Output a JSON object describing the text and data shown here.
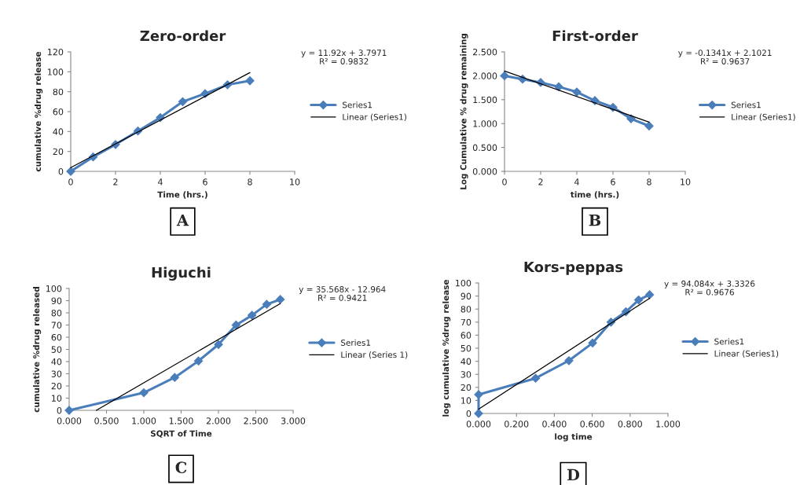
{
  "chart_data": [
    {
      "type": "line",
      "title": "Zero-order",
      "xlabel": "Time (hrs.)",
      "ylabel": "cumulative %drug release",
      "xlim": [
        0,
        10
      ],
      "xticks": [
        0,
        2,
        4,
        6,
        8,
        10
      ],
      "ylim": [
        0,
        120
      ],
      "yticks": [
        0,
        20,
        40,
        60,
        80,
        100,
        120
      ],
      "grid": false,
      "legend": "right",
      "annotations": [
        "y = 11.92x + 3.7971\nR² = 0.9832",
        "A"
      ],
      "series": [
        {
          "name": "Series1",
          "color": "#4a7ebb",
          "marker": "diamond",
          "x": [
            0,
            1,
            2,
            3,
            4,
            5,
            6,
            7,
            8
          ],
          "values": [
            0,
            14.5,
            27,
            40.5,
            54,
            70,
            78,
            87,
            91
          ]
        },
        {
          "name": "Linear (Series1)",
          "color": "#000000",
          "marker": "none",
          "x": [
            0,
            8
          ],
          "values": [
            3.8,
            99.2
          ]
        }
      ]
    },
    {
      "type": "line",
      "title": "First-order",
      "xlabel": "time (hrs.)",
      "ylabel": "Log Cumulative % drug remaining",
      "xlim": [
        0,
        10
      ],
      "xticks": [
        0,
        2,
        4,
        6,
        8,
        10
      ],
      "ylim": [
        0,
        2.5
      ],
      "yticks": [
        {
          "value": 0,
          "label": "0.000"
        },
        {
          "value": 0.5,
          "label": "0.500"
        },
        {
          "value": 1,
          "label": "1.000"
        },
        {
          "value": 1.5,
          "label": "1.500"
        },
        {
          "value": 2,
          "label": "2.000"
        },
        {
          "value": 2.5,
          "label": "2.500"
        }
      ],
      "grid": false,
      "legend": "right",
      "annotations": [
        "y = -0.1341x + 2.1021\nR² = 0.9637",
        "B"
      ],
      "series": [
        {
          "name": "Series1",
          "color": "#4a7ebb",
          "marker": "diamond",
          "x": [
            0,
            1,
            2,
            3,
            4,
            5,
            6,
            7,
            8
          ],
          "values": [
            2.0,
            1.93,
            1.86,
            1.77,
            1.66,
            1.48,
            1.34,
            1.1,
            0.95
          ]
        },
        {
          "name": "Linear (Series1)",
          "color": "#000000",
          "marker": "none",
          "x": [
            0,
            8
          ],
          "values": [
            2.1,
            1.03
          ]
        }
      ]
    },
    {
      "type": "line",
      "title": "Higuchi",
      "xlabel": "SQRT of Time",
      "ylabel": "cumulative %drug released",
      "xlim": [
        0,
        3
      ],
      "xticks": [
        {
          "value": 0,
          "label": "0.000"
        },
        {
          "value": 0.5,
          "label": "0.500"
        },
        {
          "value": 1,
          "label": "1.000"
        },
        {
          "value": 1.5,
          "label": "1.500"
        },
        {
          "value": 2,
          "label": "2.000"
        },
        {
          "value": 2.5,
          "label": "2.500"
        },
        {
          "value": 3,
          "label": "3.000"
        }
      ],
      "ylim": [
        0,
        100
      ],
      "yticks": [
        0,
        10,
        20,
        30,
        40,
        50,
        60,
        70,
        80,
        90,
        100
      ],
      "grid": false,
      "legend": "right",
      "annotations": [
        "y = 35.568x - 12.964\nR² = 0.9421",
        "C"
      ],
      "series": [
        {
          "name": "Series1",
          "color": "#4a7ebb",
          "marker": "diamond",
          "x": [
            0,
            1,
            1.414,
            1.732,
            2,
            2.236,
            2.449,
            2.646,
            2.828
          ],
          "values": [
            0,
            14.5,
            27,
            40.5,
            54,
            70,
            78,
            87,
            91
          ]
        },
        {
          "name": "Linear (Series 1)",
          "color": "#000000",
          "marker": "none",
          "x": [
            0.364,
            2.828
          ],
          "values": [
            0,
            87.6
          ]
        }
      ]
    },
    {
      "type": "line",
      "title": "Kors-peppas",
      "xlabel": "log time",
      "ylabel": "log cumulative %drug release",
      "xlim": [
        0,
        1
      ],
      "xticks": [
        {
          "value": 0,
          "label": "0.000"
        },
        {
          "value": 0.2,
          "label": "0.200"
        },
        {
          "value": 0.4,
          "label": "0.400"
        },
        {
          "value": 0.6,
          "label": "0.600"
        },
        {
          "value": 0.8,
          "label": "0.800"
        },
        {
          "value": 1,
          "label": "1.000"
        }
      ],
      "ylim": [
        0,
        100
      ],
      "yticks": [
        0,
        10,
        20,
        30,
        40,
        50,
        60,
        70,
        80,
        90,
        100
      ],
      "grid": false,
      "legend": "right",
      "annotations": [
        "y = 94.084x + 3.3326\nR² = 0.9676",
        "D"
      ],
      "series": [
        {
          "name": "Series1",
          "color": "#4a7ebb",
          "marker": "diamond",
          "x": [
            0,
            0,
            0.301,
            0.477,
            0.602,
            0.699,
            0.778,
            0.845,
            0.903
          ],
          "values": [
            0,
            14.5,
            27,
            40.5,
            54,
            70,
            78,
            87,
            91
          ]
        },
        {
          "name": "Linear (Series1)",
          "color": "#000000",
          "marker": "none",
          "x": [
            0,
            0.903
          ],
          "values": [
            3.3,
            88.3
          ]
        }
      ]
    }
  ]
}
